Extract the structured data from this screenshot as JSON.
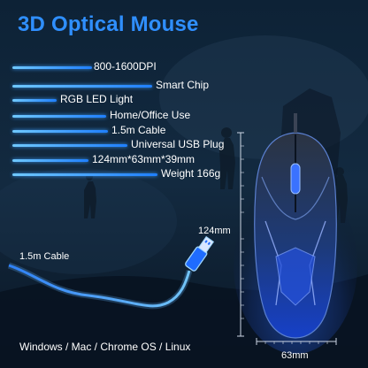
{
  "title": "3D Optical Mouse",
  "features": [
    "800-1600DPI",
    "Smart Chip",
    "RGB LED Light",
    "Home/Office Use",
    "1.5m Cable",
    "Universal USB Plug",
    "124mm*63mm*39mm",
    "Weight 166g"
  ],
  "dimensions": {
    "height": "124mm",
    "width": "63mm"
  },
  "cable_label": "1.5m Cable",
  "compatibility": "Windows / Mac / Chrome OS / Linux",
  "colors": {
    "title": "#2f8fff",
    "accent_line": "#3aa0ff",
    "background": "#0b1a2a",
    "mouse_glow": "#1e5cff"
  }
}
